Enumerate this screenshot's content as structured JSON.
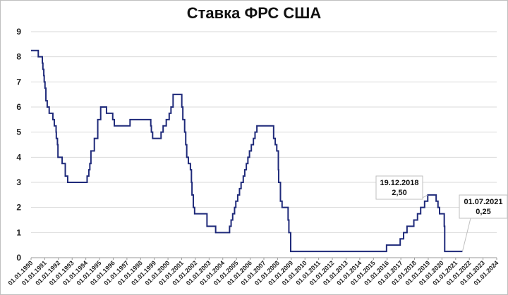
{
  "chart_data": {
    "type": "line",
    "title": "Ставка ФРС США",
    "xlabel": "",
    "ylabel": "",
    "ylim": [
      0,
      9
    ],
    "yticks": [
      "0",
      "1",
      "2",
      "3",
      "4",
      "5",
      "6",
      "7",
      "8",
      "9"
    ],
    "xlim": [
      "1990-01-01",
      "2024-01-01"
    ],
    "xticks": [
      "01.01.1990",
      "01.01.1991",
      "01.01.1992",
      "01.01.1993",
      "01.01.1994",
      "01.01.1995",
      "01.01.1996",
      "01.01.1997",
      "01.01.1998",
      "01.01.1999",
      "01.01.2000",
      "01.01.2001",
      "01.01.2002",
      "01.01.2003",
      "01.01.2004",
      "01.01.2005",
      "01.01.2006",
      "01.01.2007",
      "01.01.2008",
      "01.01.2009",
      "01.01.2010",
      "01.01.2011",
      "01.01.2012",
      "01.01.2013",
      "01.01.2014",
      "01.01.2015",
      "01.01.2016",
      "01.01.2017",
      "01.01.2018",
      "01.01.2019",
      "01.01.2020",
      "01.01.2021",
      "01.01.2022",
      "01.01.2023",
      "01.01.2024"
    ],
    "grid": true,
    "legend": "none",
    "line_color": "#1f2a7a",
    "series": [
      {
        "x": [
          "1990-01-01",
          "1990-07-13",
          "1990-10-29",
          "1990-11-13",
          "1990-12-07",
          "1990-12-18",
          "1991-01-08",
          "1991-02-01",
          "1991-03-08",
          "1991-04-30",
          "1991-08-06",
          "1991-09-13",
          "1991-10-31",
          "1991-11-06",
          "1991-12-06",
          "1991-12-20",
          "1992-04-09",
          "1992-07-02",
          "1992-09-04",
          "1994-02-04",
          "1994-03-22",
          "1994-04-18",
          "1994-05-17",
          "1994-08-16",
          "1994-11-15",
          "1995-02-01",
          "1995-07-06",
          "1995-12-19",
          "1996-01-31",
          "1997-03-25",
          "1998-09-29",
          "1998-10-15",
          "1998-11-17",
          "1999-06-30",
          "1999-08-24",
          "1999-11-16",
          "2000-02-02",
          "2000-03-21",
          "2000-05-16",
          "2001-01-03",
          "2001-01-31",
          "2001-03-20",
          "2001-04-18",
          "2001-05-15",
          "2001-06-27",
          "2001-08-21",
          "2001-09-17",
          "2001-10-02",
          "2001-11-06",
          "2001-12-11",
          "2002-11-06",
          "2003-06-25",
          "2004-06-30",
          "2004-08-10",
          "2004-09-21",
          "2004-11-10",
          "2004-12-14",
          "2005-02-02",
          "2005-03-22",
          "2005-05-03",
          "2005-06-30",
          "2005-08-09",
          "2005-09-20",
          "2005-11-01",
          "2005-12-13",
          "2006-01-31",
          "2006-03-28",
          "2006-05-10",
          "2006-06-29",
          "2007-09-18",
          "2007-10-31",
          "2007-12-11",
          "2008-01-22",
          "2008-01-30",
          "2008-03-18",
          "2008-04-30",
          "2008-10-08",
          "2008-10-29",
          "2008-12-16",
          "2015-12-16",
          "2016-12-14",
          "2017-03-15",
          "2017-06-14",
          "2017-12-13",
          "2018-03-21",
          "2018-06-13",
          "2018-09-26",
          "2018-12-19",
          "2019-07-31",
          "2019-09-18",
          "2019-10-30",
          "2020-03-03",
          "2020-03-15",
          "2021-07-01"
        ],
        "values": [
          8.25,
          8.0,
          7.75,
          7.5,
          7.25,
          7.0,
          6.75,
          6.25,
          6.0,
          5.75,
          5.5,
          5.25,
          5.0,
          4.75,
          4.5,
          4.0,
          3.75,
          3.25,
          3.0,
          3.25,
          3.5,
          3.75,
          4.25,
          4.75,
          5.5,
          6.0,
          5.75,
          5.5,
          5.25,
          5.5,
          5.25,
          5.0,
          4.75,
          5.0,
          5.25,
          5.5,
          5.75,
          6.0,
          6.5,
          6.0,
          5.5,
          5.0,
          4.5,
          4.0,
          3.75,
          3.5,
          3.0,
          2.5,
          2.0,
          1.75,
          1.25,
          1.0,
          1.25,
          1.5,
          1.75,
          2.0,
          2.25,
          2.5,
          2.75,
          3.0,
          3.25,
          3.5,
          3.75,
          4.0,
          4.25,
          4.5,
          4.75,
          5.0,
          5.25,
          4.75,
          4.5,
          4.25,
          3.5,
          3.0,
          2.25,
          2.0,
          1.5,
          1.0,
          0.25,
          0.5,
          0.75,
          1.0,
          1.25,
          1.5,
          1.75,
          2.0,
          2.25,
          2.5,
          2.25,
          2.0,
          1.75,
          1.25,
          0.25,
          0.25
        ]
      }
    ],
    "annotations": [
      {
        "date": "2018-12-19",
        "value": 2.5,
        "line1": "19.12.2018",
        "line2": "2,50"
      },
      {
        "date": "2021-07-01",
        "value": 0.25,
        "line1": "01.07.2021",
        "line2": "0,25"
      }
    ]
  }
}
